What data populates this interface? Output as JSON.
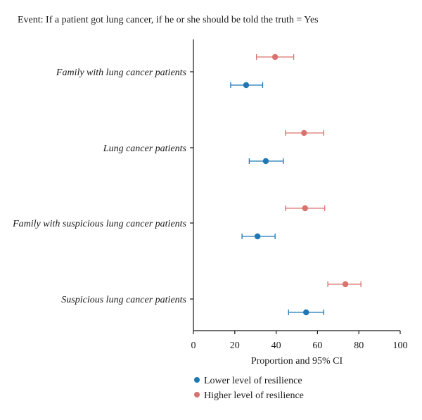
{
  "chart_data": {
    "type": "scatter",
    "title": "Event: If a patient got lung cancer, if he or she should be told the truth = Yes",
    "xlabel": "Proportion and 95% CI",
    "ylabel": "",
    "xlim": [
      0,
      100
    ],
    "x_ticks": [
      "0",
      "20",
      "40",
      "60",
      "80",
      "100"
    ],
    "categories": [
      "Family with lung cancer patients",
      "Lung cancer patients",
      "Family with suspicious lung cancer patients",
      "Suspicious lung cancer patients"
    ],
    "series": [
      {
        "name": "Lower level of resilience",
        "color": "#1f77b4",
        "points": [
          {
            "estimate": 25.5,
            "lower": 18.0,
            "upper": 33.5
          },
          {
            "estimate": 35.0,
            "lower": 27.0,
            "upper": 43.5
          },
          {
            "estimate": 31.0,
            "lower": 23.5,
            "upper": 39.5
          },
          {
            "estimate": 54.5,
            "lower": 46.0,
            "upper": 63.0
          }
        ]
      },
      {
        "name": "Higher level of resilience",
        "color": "#d9736f",
        "points": [
          {
            "estimate": 39.5,
            "lower": 30.5,
            "upper": 48.5
          },
          {
            "estimate": 53.5,
            "lower": 44.5,
            "upper": 63.0
          },
          {
            "estimate": 54.0,
            "lower": 44.5,
            "upper": 63.5
          },
          {
            "estimate": 73.5,
            "lower": 65.0,
            "upper": 81.0
          }
        ]
      }
    ],
    "grid": false,
    "legend_position": "bottom-left"
  }
}
